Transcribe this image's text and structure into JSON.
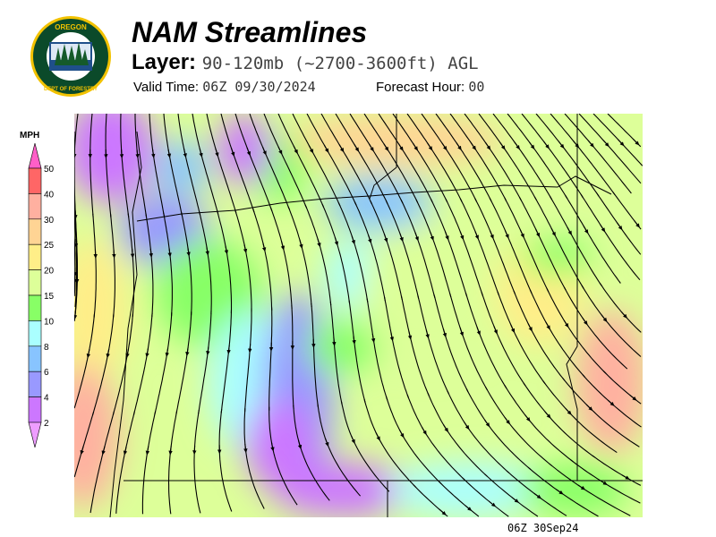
{
  "header": {
    "title": "NAM Streamlines",
    "layer_label": "Layer:",
    "layer_value": "90-120mb (~2700-3600ft) AGL",
    "valid_time_label": "Valid Time:",
    "valid_time_value": "06Z 09/30/2024",
    "forecast_hour_label": "Forecast Hour:",
    "forecast_hour_value": "00"
  },
  "logo": {
    "text_top": "OREGON",
    "text_bottom": "DEPARTMENT OF FORESTRY"
  },
  "legend": {
    "unit": "MPH",
    "ticks": [
      "50",
      "40",
      "30",
      "25",
      "20",
      "15",
      "10",
      "8",
      "6",
      "4",
      "2"
    ],
    "colors": [
      "#ff5fc8",
      "#ff6666",
      "#ffb0a0",
      "#ffd494",
      "#ffee88",
      "#ddff99",
      "#88ff66",
      "#aaffff",
      "#88c4ff",
      "#9999ff",
      "#cc77ff",
      "#ee9dff"
    ]
  },
  "footer": {
    "timestamp": "06Z 30Sep24"
  }
}
